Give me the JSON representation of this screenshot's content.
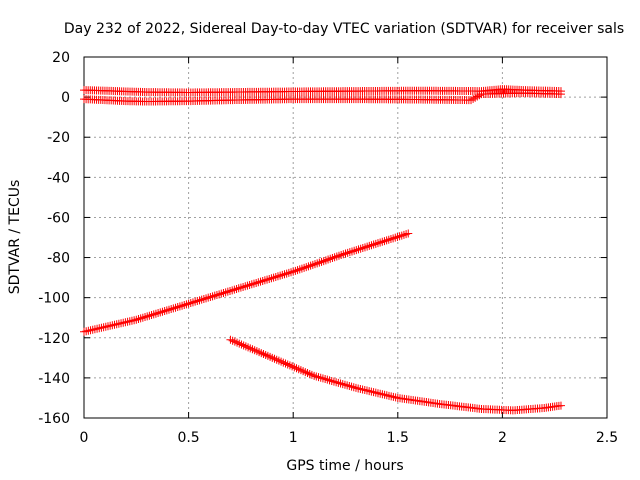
{
  "chart_data": {
    "type": "scatter",
    "title": "Day 232 of 2022, Sidereal Day-to-day VTEC variation (SDTVAR) for receiver sals",
    "xlabel": "GPS time / hours",
    "ylabel": "SDTVAR / TECUs",
    "xlim": [
      0,
      2.5
    ],
    "ylim": [
      -160,
      20
    ],
    "xticks": [
      0,
      0.5,
      1,
      1.5,
      2,
      2.5
    ],
    "xtick_labels": [
      "0",
      "0.5",
      "1",
      "1.5",
      "2",
      "2.5"
    ],
    "yticks": [
      -160,
      -140,
      -120,
      -100,
      -80,
      -60,
      -40,
      -20,
      0,
      20
    ],
    "ytick_labels": [
      "-160",
      "-140",
      "-120",
      "-100",
      "-80",
      "-60",
      "-40",
      "-20",
      "0",
      "20"
    ],
    "grid": true,
    "marker": "+",
    "color": "#ff0000",
    "series": [
      {
        "x": [
          0,
          0.1,
          0.2,
          0.3,
          0.5,
          0.7,
          1.0,
          1.3,
          1.6,
          1.9,
          2.0,
          2.1,
          2.28
        ],
        "y": [
          3.5,
          3.2,
          2.8,
          2.5,
          2.3,
          2.5,
          2.8,
          3.0,
          3.2,
          3.0,
          4.0,
          3.5,
          3.0
        ]
      },
      {
        "x": [
          0,
          0.1,
          0.2,
          0.3,
          0.5,
          0.7,
          1.0,
          1.3,
          1.6,
          1.85,
          1.9,
          2.1,
          2.28
        ],
        "y": [
          -1.0,
          -1.5,
          -2.0,
          -2.2,
          -2.0,
          -1.5,
          -1.0,
          -1.0,
          -1.2,
          -1.5,
          1.5,
          2.0,
          1.5
        ]
      },
      {
        "x": [
          0,
          0.25,
          0.5,
          0.75,
          1.0,
          1.25,
          1.55
        ],
        "y": [
          -117,
          -111,
          -103,
          -95,
          -87,
          -78,
          -68
        ]
      },
      {
        "x": [
          0.7,
          0.9,
          1.1,
          1.3,
          1.5,
          1.7,
          1.9,
          2.05,
          2.2,
          2.28
        ],
        "y": [
          -121,
          -130,
          -139,
          -145,
          -150,
          -153,
          -155.5,
          -156.2,
          -155.0,
          -153.8
        ]
      }
    ]
  }
}
